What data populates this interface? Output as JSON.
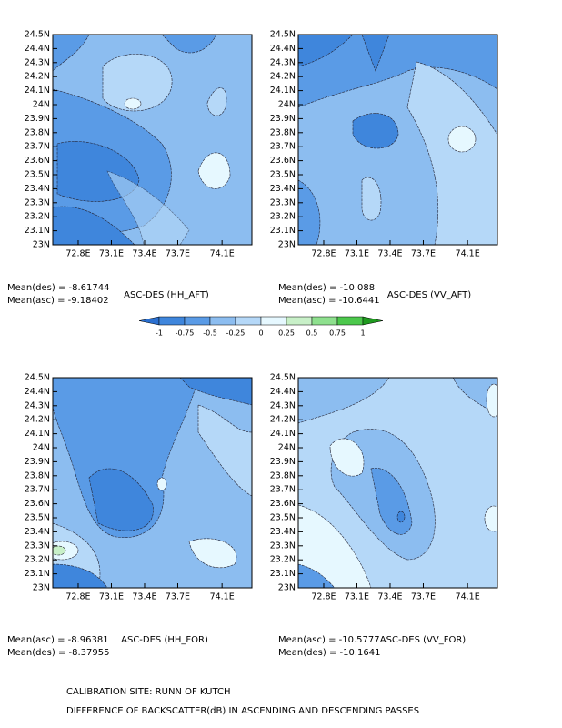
{
  "chart_data": [
    {
      "type": "contour",
      "title": "ASC-DES (HH_AFT)",
      "stats": [
        "Mean(des) = -8.61744",
        "Mean(asc) = -9.18402"
      ],
      "xlim": [
        72.57,
        74.37
      ],
      "ylim": [
        23,
        24.5
      ],
      "xticks": [
        {
          "value": 72.8,
          "label": "72.8E"
        },
        {
          "value": 73.1,
          "label": "73.1E"
        },
        {
          "value": 73.4,
          "label": "73.4E"
        },
        {
          "value": 73.7,
          "label": "73.7E"
        },
        {
          "value": 74.1,
          "label": "74.1E"
        }
      ],
      "yticks": [
        {
          "value": 23,
          "label": "23N"
        },
        {
          "value": 23.1,
          "label": "23.1N"
        },
        {
          "value": 23.2,
          "label": "23.2N"
        },
        {
          "value": 23.3,
          "label": "23.3N"
        },
        {
          "value": 23.4,
          "label": "23.4N"
        },
        {
          "value": 23.5,
          "label": "23.5N"
        },
        {
          "value": 23.6,
          "label": "23.6N"
        },
        {
          "value": 23.7,
          "label": "23.7N"
        },
        {
          "value": 23.8,
          "label": "23.8N"
        },
        {
          "value": 23.9,
          "label": "23.9N"
        },
        {
          "value": 24,
          "label": "24N"
        },
        {
          "value": 24.1,
          "label": "24.1N"
        },
        {
          "value": 24.2,
          "label": "24.2N"
        },
        {
          "value": 24.3,
          "label": "24.3N"
        },
        {
          "value": 24.4,
          "label": "24.4N"
        },
        {
          "value": 24.5,
          "label": "24.5N"
        }
      ]
    },
    {
      "type": "contour",
      "title": "ASC-DES (VV_AFT)",
      "stats": [
        "Mean(des) = -10.088",
        "Mean(asc) = -10.6441"
      ],
      "xlim": [
        72.57,
        74.37
      ],
      "ylim": [
        23,
        24.5
      ],
      "xticks": [
        {
          "value": 72.8,
          "label": "72.8E"
        },
        {
          "value": 73.1,
          "label": "73.1E"
        },
        {
          "value": 73.4,
          "label": "73.4E"
        },
        {
          "value": 73.7,
          "label": "73.7E"
        },
        {
          "value": 74.1,
          "label": "74.1E"
        }
      ],
      "yticks": [
        {
          "value": 23,
          "label": "23N"
        },
        {
          "value": 23.1,
          "label": "23.1N"
        },
        {
          "value": 23.2,
          "label": "23.2N"
        },
        {
          "value": 23.3,
          "label": "23.3N"
        },
        {
          "value": 23.4,
          "label": "23.4N"
        },
        {
          "value": 23.5,
          "label": "23.5N"
        },
        {
          "value": 23.6,
          "label": "23.6N"
        },
        {
          "value": 23.7,
          "label": "23.7N"
        },
        {
          "value": 23.8,
          "label": "23.8N"
        },
        {
          "value": 23.9,
          "label": "23.9N"
        },
        {
          "value": 24,
          "label": "24N"
        },
        {
          "value": 24.1,
          "label": "24.1N"
        },
        {
          "value": 24.2,
          "label": "24.2N"
        },
        {
          "value": 24.3,
          "label": "24.3N"
        },
        {
          "value": 24.4,
          "label": "24.4N"
        },
        {
          "value": 24.5,
          "label": "24.5N"
        }
      ]
    },
    {
      "type": "contour",
      "title": "ASC-DES (HH_FOR)",
      "stats": [
        "Mean(asc) = -8.96381",
        "Mean(des) = -8.37955"
      ],
      "xlim": [
        72.57,
        74.37
      ],
      "ylim": [
        23,
        24.5
      ],
      "xticks": [
        {
          "value": 72.8,
          "label": "72.8E"
        },
        {
          "value": 73.1,
          "label": "73.1E"
        },
        {
          "value": 73.4,
          "label": "73.4E"
        },
        {
          "value": 73.7,
          "label": "73.7E"
        },
        {
          "value": 74.1,
          "label": "74.1E"
        }
      ],
      "yticks": [
        {
          "value": 23,
          "label": "23N"
        },
        {
          "value": 23.1,
          "label": "23.1N"
        },
        {
          "value": 23.2,
          "label": "23.2N"
        },
        {
          "value": 23.3,
          "label": "23.3N"
        },
        {
          "value": 23.4,
          "label": "23.4N"
        },
        {
          "value": 23.5,
          "label": "23.5N"
        },
        {
          "value": 23.6,
          "label": "23.6N"
        },
        {
          "value": 23.7,
          "label": "23.7N"
        },
        {
          "value": 23.8,
          "label": "23.8N"
        },
        {
          "value": 23.9,
          "label": "23.9N"
        },
        {
          "value": 24,
          "label": "24N"
        },
        {
          "value": 24.1,
          "label": "24.1N"
        },
        {
          "value": 24.2,
          "label": "24.2N"
        },
        {
          "value": 24.3,
          "label": "24.3N"
        },
        {
          "value": 24.4,
          "label": "24.4N"
        },
        {
          "value": 24.5,
          "label": "24.5N"
        }
      ]
    },
    {
      "type": "contour",
      "title": "ASC-DES (VV_FOR)",
      "stats": [
        "Mean(asc) = -10.5777",
        "Mean(des) = -10.1641"
      ],
      "xlim": [
        72.57,
        74.37
      ],
      "ylim": [
        23,
        24.5
      ],
      "xticks": [
        {
          "value": 72.8,
          "label": "72.8E"
        },
        {
          "value": 73.1,
          "label": "73.1E"
        },
        {
          "value": 73.4,
          "label": "73.4E"
        },
        {
          "value": 73.7,
          "label": "73.7E"
        },
        {
          "value": 74.1,
          "label": "74.1E"
        }
      ],
      "yticks": [
        {
          "value": 23,
          "label": "23N"
        },
        {
          "value": 23.1,
          "label": "23.1N"
        },
        {
          "value": 23.2,
          "label": "23.2N"
        },
        {
          "value": 23.3,
          "label": "23.3N"
        },
        {
          "value": 23.4,
          "label": "23.4N"
        },
        {
          "value": 23.5,
          "label": "23.5N"
        },
        {
          "value": 23.6,
          "label": "23.6N"
        },
        {
          "value": 23.7,
          "label": "23.7N"
        },
        {
          "value": 23.8,
          "label": "23.8N"
        },
        {
          "value": 23.9,
          "label": "23.9N"
        },
        {
          "value": 24,
          "label": "24N"
        },
        {
          "value": 24.1,
          "label": "24.1N"
        },
        {
          "value": 24.2,
          "label": "24.2N"
        },
        {
          "value": 24.3,
          "label": "24.3N"
        },
        {
          "value": 24.4,
          "label": "24.4N"
        },
        {
          "value": 24.5,
          "label": "24.5N"
        }
      ]
    }
  ],
  "colorbar": {
    "levels": [
      -1,
      -0.75,
      -0.5,
      -0.25,
      0,
      0.25,
      0.5,
      0.75,
      1
    ],
    "colors": [
      "#2a6fd0",
      "#3f86dc",
      "#5a9be6",
      "#8cbdf0",
      "#b5d8f8",
      "#e6f8ff",
      "#c8f0c8",
      "#8ee08e",
      "#4cc84c",
      "#1f9a1f"
    ]
  },
  "footer": [
    "CALIBRATION SITE: RUNN OF KUTCH",
    "DIFFERENCE OF BACKSCATTER(dB) IN ASCENDING AND DESCENDING PASSES"
  ]
}
